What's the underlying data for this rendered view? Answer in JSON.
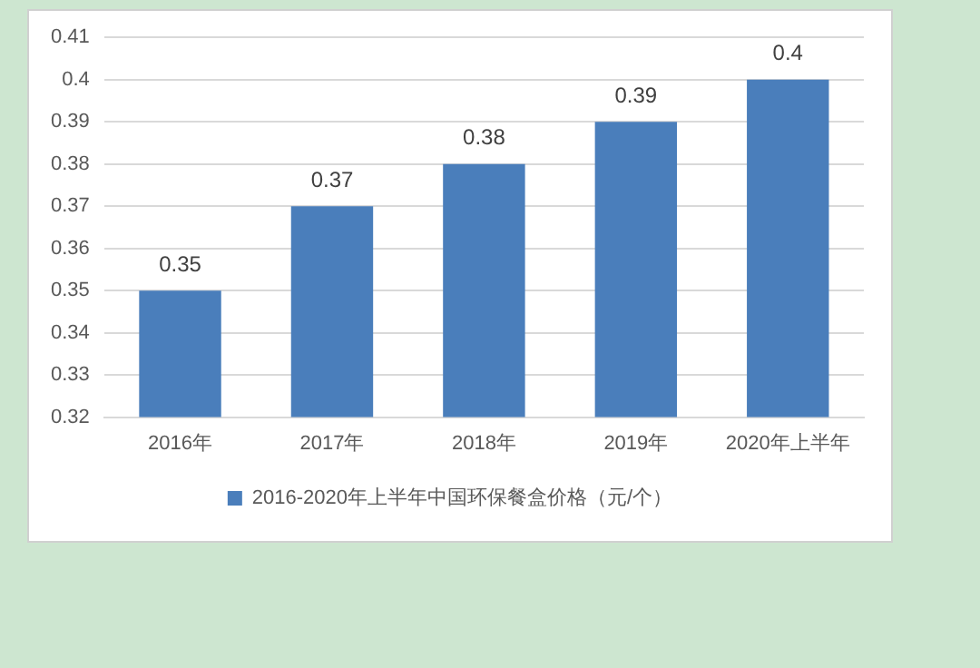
{
  "chart_data": {
    "type": "bar",
    "categories": [
      "2016年",
      "2017年",
      "2018年",
      "2019年",
      "2020年上半年"
    ],
    "series": [
      {
        "name": "2016-2020年上半年中国环保餐盒价格（元/个）",
        "color": "#4a7ebb",
        "values": [
          0.35,
          0.37,
          0.38,
          0.39,
          0.4
        ]
      }
    ],
    "ylim": [
      0.32,
      0.41
    ],
    "yticks": [
      0.32,
      0.33,
      0.34,
      0.35,
      0.36,
      0.37,
      0.38,
      0.39,
      0.4,
      0.41
    ],
    "grid": "y",
    "legend": "bottom",
    "data_labels": true
  }
}
